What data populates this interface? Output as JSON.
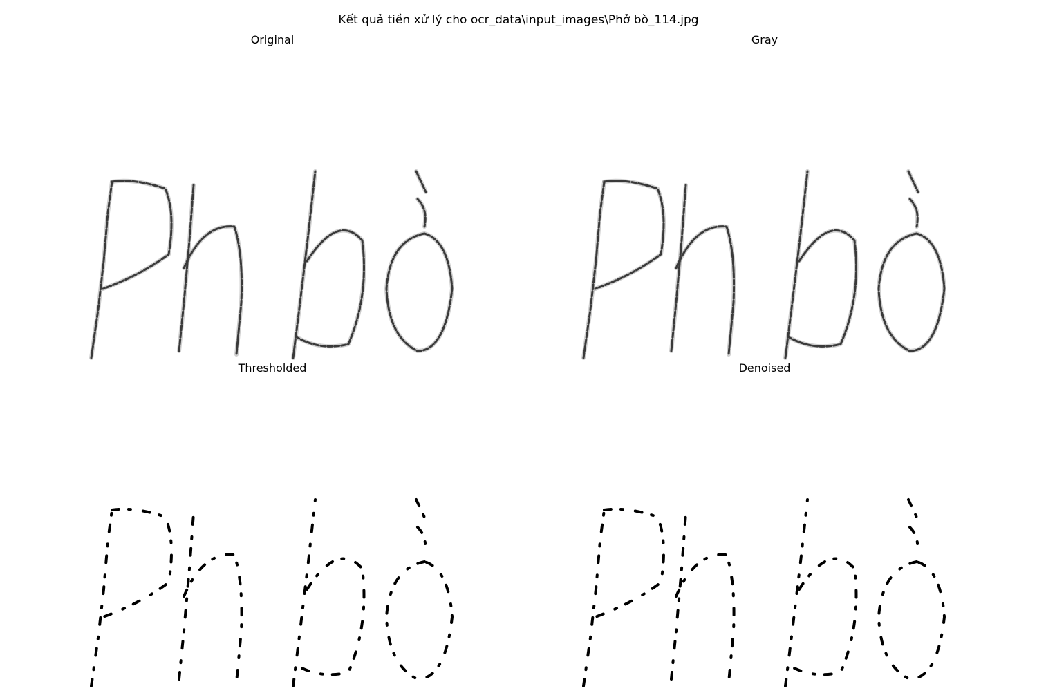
{
  "figure": {
    "title": "Kết quả tiền xử lý cho ocr_data\\input_images\\Phở bò_114.jpg"
  },
  "panels": [
    {
      "title": "Original",
      "style": "soft"
    },
    {
      "title": "Gray",
      "style": "soft"
    },
    {
      "title": "Thresholded",
      "style": "binary"
    },
    {
      "title": "Denoised",
      "style": "binary"
    }
  ],
  "colors": {
    "background": "#ffffff",
    "ink": "#000000",
    "soft_ink": "#3a3a3a"
  }
}
